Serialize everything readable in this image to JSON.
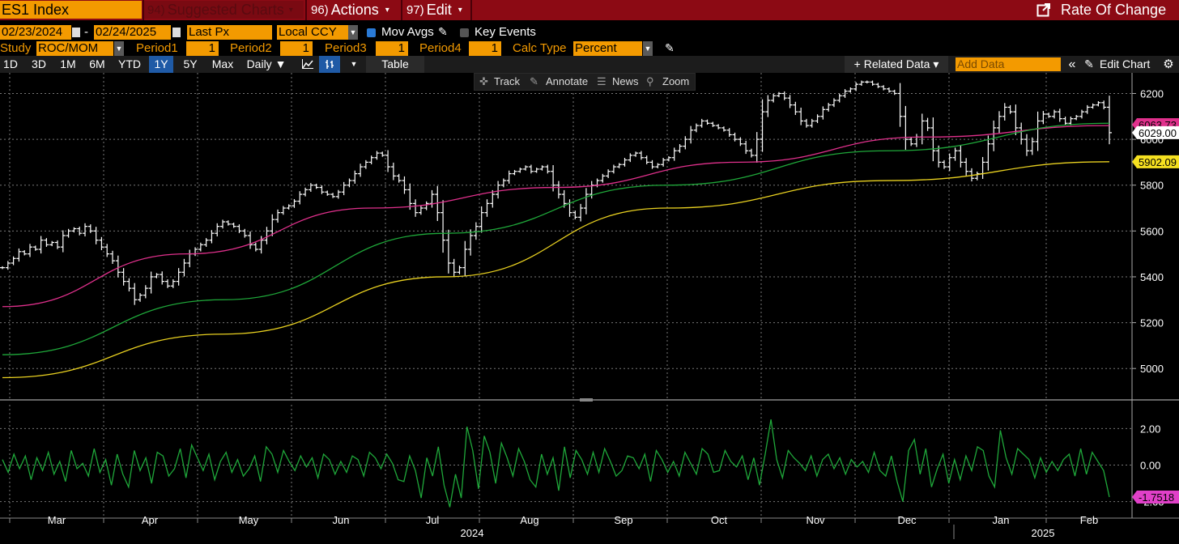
{
  "titlebar": {
    "ticker": "ES1 Index",
    "suggested": {
      "key": "94)",
      "label": "Suggested Charts"
    },
    "actions": {
      "key": "96)",
      "label": "Actions"
    },
    "edit": {
      "key": "97)",
      "label": "Edit"
    },
    "rate_of_change": "Rate Of Change"
  },
  "row1": {
    "start_date": "02/23/2024",
    "dash": "-",
    "end_date": "02/24/2025",
    "field": "Last Px",
    "currency": "Local CCY",
    "mov_avgs": "Mov Avgs",
    "key_events": "Key Events"
  },
  "row2": {
    "study_label": "Study",
    "study": "ROC/MOM",
    "period1_label": "Period1",
    "period1": "1",
    "period2_label": "Period2",
    "period2": "1",
    "period3_label": "Period3",
    "period3": "1",
    "period4_label": "Period4",
    "period4": "1",
    "calc_label": "Calc Type",
    "calc": "Percent"
  },
  "toolbar": {
    "ranges": [
      "1D",
      "3D",
      "1M",
      "6M",
      "YTD",
      "1Y",
      "5Y",
      "Max"
    ],
    "active_range": "1Y",
    "frequency": "Daily ▼",
    "table": "Table",
    "related": "+ Related Data ▾",
    "add_data_placeholder": "Add Data",
    "edit_chart": "Edit Chart",
    "collapse": "«"
  },
  "minitools": {
    "track": "Track",
    "annotate": "Annotate",
    "news": "News",
    "zoom": "Zoom"
  },
  "colors": {
    "accent": "#f39a00",
    "titlebar": "#8c0a14",
    "ma50": "#e0308c",
    "ma100": "#1fa83a",
    "ma200": "#e8d020",
    "roc": "#1fa83a",
    "price": "#ffffff"
  },
  "chart_data": [
    {
      "type": "bar",
      "title": "",
      "series": [
        {
          "name": "ES1 Index",
          "values": [
            5440,
            5460,
            5480,
            5510,
            5500,
            5530,
            5520,
            5560,
            5540,
            5550,
            5530,
            5580,
            5600,
            5610,
            5590,
            5620,
            5600,
            5560,
            5530,
            5500,
            5470,
            5420,
            5380,
            5350,
            5300,
            5320,
            5350,
            5400,
            5410,
            5380,
            5360,
            5380,
            5420,
            5460,
            5500,
            5520,
            5540,
            5560,
            5590,
            5620,
            5640,
            5630,
            5620,
            5600,
            5580,
            5540,
            5520,
            5560,
            5600,
            5650,
            5680,
            5700,
            5710,
            5730,
            5760,
            5780,
            5800,
            5790,
            5770,
            5760,
            5750,
            5770,
            5800,
            5820,
            5850,
            5880,
            5900,
            5920,
            5940,
            5930,
            5880,
            5840,
            5820,
            5780,
            5720,
            5680,
            5700,
            5720,
            5760,
            5680,
            5560,
            5460,
            5420,
            5440,
            5520,
            5580,
            5620,
            5680,
            5720,
            5760,
            5800,
            5820,
            5850,
            5860,
            5870,
            5880,
            5860,
            5870,
            5880,
            5860,
            5800,
            5760,
            5720,
            5680,
            5660,
            5700,
            5760,
            5800,
            5820,
            5840,
            5860,
            5880,
            5890,
            5910,
            5930,
            5940,
            5920,
            5900,
            5880,
            5890,
            5910,
            5920,
            5950,
            5970,
            6000,
            6040,
            6060,
            6080,
            6070,
            6060,
            6050,
            6040,
            6020,
            6000,
            5980,
            5950,
            5930,
            6000,
            6120,
            6170,
            6190,
            6200,
            6180,
            6150,
            6120,
            6080,
            6060,
            6080,
            6100,
            6130,
            6150,
            6170,
            6190,
            6210,
            6220,
            6240,
            6250,
            6250,
            6240,
            6230,
            6220,
            6210,
            6200,
            6100,
            6000,
            5980,
            6010,
            6080,
            6050,
            5950,
            5900,
            5880,
            5920,
            5950,
            5900,
            5860,
            5830,
            5850,
            5900,
            5980,
            6050,
            6100,
            6140,
            6120,
            6050,
            6000,
            5950,
            5990,
            6080,
            6110,
            6100,
            6120,
            6090,
            6070,
            6090,
            6100,
            6120,
            6140,
            6150,
            6160,
            6140,
            6029
          ]
        },
        {
          "name": "MA 50",
          "values": [
            5270,
            5500,
            5700,
            5790,
            5900,
            6010,
            6060
          ]
        },
        {
          "name": "MA 100",
          "values": [
            5060,
            5300,
            5590,
            5800,
            5950,
            6070
          ]
        },
        {
          "name": "MA 200",
          "values": [
            4960,
            5150,
            5400,
            5700,
            5820,
            5902.09
          ]
        }
      ],
      "x_labels": [
        "Mar",
        "Apr",
        "May",
        "Jun",
        "Jul",
        "Aug",
        "Sep",
        "Oct",
        "Nov",
        "Dec",
        "Jan",
        "Feb"
      ],
      "year_labels": [
        "2024",
        "2025"
      ],
      "yticks": [
        5000,
        5200,
        5400,
        5600,
        5800,
        6000,
        6200
      ],
      "ylim": [
        4870,
        6290
      ],
      "last_price_label": "6029.00",
      "ma200_label": "5902.09",
      "ma50_label": "6063.73",
      "grid": true
    },
    {
      "type": "line",
      "series": [
        {
          "name": "ROC/MOM",
          "values": [
            0.3,
            -0.4,
            0.6,
            -0.2,
            0.5,
            -0.8,
            0.4,
            -0.3,
            0.7,
            -0.5,
            0.2,
            -0.9,
            0.8,
            -0.2,
            0.1,
            -0.6,
            0.9,
            -0.4,
            0.3,
            -1.1,
            0.6,
            -0.5,
            -1.2,
            0.8,
            -0.3,
            0.4,
            -1.0,
            0.7,
            0.5,
            -0.6,
            -0.2,
            0.9,
            -0.7,
            1.1,
            0.4,
            -0.3,
            0.6,
            -0.8,
            0.2,
            0.7,
            -0.4,
            0.3,
            -0.6,
            -0.2,
            0.5,
            -0.9,
            1.0,
            0.6,
            -0.4,
            0.8,
            0.2,
            -0.3,
            0.5,
            -0.1,
            0.4,
            -0.7,
            0.6,
            0.3,
            -0.5,
            0.2,
            -0.4,
            0.5,
            0.3,
            -0.6,
            0.7,
            0.4,
            -0.2,
            0.6,
            0.1,
            -0.8,
            -0.9,
            0.5,
            -0.3,
            -1.8,
            0.4,
            -0.6,
            1.0,
            -1.1,
            -2.3,
            -0.5,
            -1.8,
            2.1,
            0.8,
            -1.3,
            1.6,
            0.7,
            -1.0,
            1.2,
            0.4,
            -0.6,
            0.9,
            0.2,
            -0.8,
            -1.2,
            0.6,
            -0.5,
            0.4,
            -1.4,
            1.0,
            -0.7,
            0.8,
            0.3,
            -0.5,
            0.7,
            -0.4,
            0.9,
            0.2,
            -0.6,
            -0.3,
            0.5,
            0.4,
            -0.2,
            0.6,
            -0.9,
            0.8,
            0.3,
            -0.4,
            0.2,
            -0.6,
            0.7,
            0.1,
            -0.5,
            0.9,
            0.6,
            -0.4,
            -0.3,
            0.8,
            0.2,
            -0.1,
            0.5,
            -0.8,
            0.4,
            -1.1,
            0.6,
            2.5,
            0.3,
            -0.7,
            0.8,
            0.4,
            0.1,
            -0.3,
            0.5,
            -0.6,
            0.3,
            0.6,
            -0.2,
            0.4,
            -0.5,
            0.3,
            -0.1,
            0.2,
            -0.4,
            0.7,
            -0.3,
            -0.6,
            0.5,
            -0.9,
            -2.0,
            0.8,
            1.4,
            -0.5,
            0.9,
            -1.2,
            -0.2,
            0.6,
            -1.0,
            0.3,
            -0.8,
            0.5,
            -0.3,
            1.0,
            0.8,
            -0.6,
            -1.2,
            1.9,
            0.4,
            -0.5,
            0.9,
            0.6,
            0.3,
            -0.7,
            0.4,
            -0.4,
            0.2,
            -0.3,
            0.3,
            0.6,
            -0.6,
            0.9,
            -0.5,
            0.7,
            0.2,
            -0.3,
            -1.75
          ]
        }
      ],
      "yticks": [
        -2.0,
        0.0,
        2.0
      ],
      "ytick_labels": [
        "-2.00",
        "0.00",
        "2.00"
      ],
      "ylim": [
        -2.9,
        3.3
      ],
      "last_label": "-1.7518"
    }
  ]
}
